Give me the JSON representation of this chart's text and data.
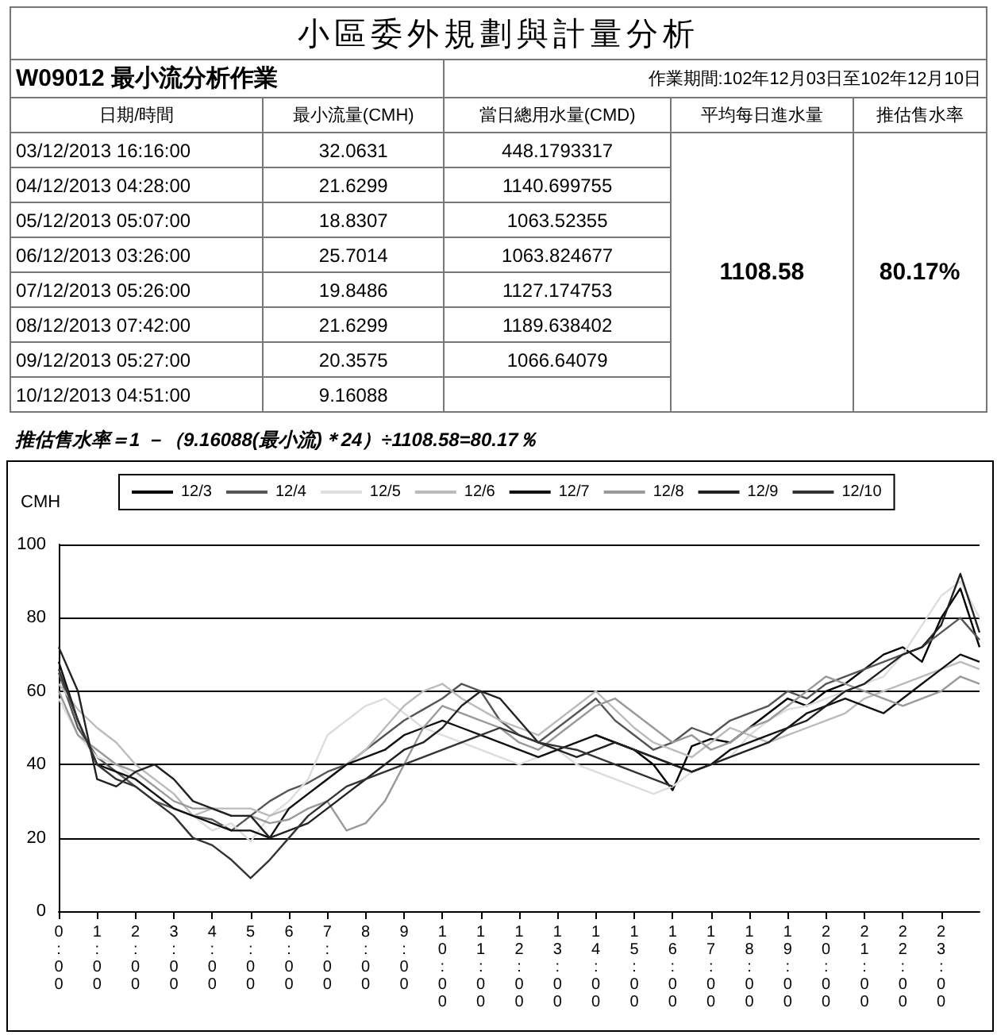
{
  "chart_data": [
    {
      "type": "other",
      "title": "小區委外規劃與計量分析",
      "subtitle": "W09012 最小流分析作業",
      "annotations": [
        "作業期間:102年12月03日至102年12月10日",
        "日期/時間",
        "最小流量(CMH)",
        "當日總用水量(CMD)",
        "平均每日進水量",
        "推估售水率",
        "03/12/2013 16:16:00",
        "32.0631",
        "448.1793317",
        "04/12/2013 04:28:00",
        "21.6299",
        "1140.699755",
        "05/12/2013 05:07:00",
        "18.8307",
        "1063.52355",
        "06/12/2013 03:26:00",
        "25.7014",
        "1063.824677",
        "07/12/2013 05:26:00",
        "19.8486",
        "1127.174753",
        "08/12/2013 07:42:00",
        "21.6299",
        "1189.638402",
        "09/12/2013 05:27:00",
        "20.3575",
        "1066.64079",
        "10/12/2013 04:51:00",
        "9.16088",
        "1108.58",
        "80.17%",
        "推估售水率＝1 －（9.16088(最小流)＊24）÷1108.58=80.17％"
      ]
    },
    {
      "type": "line",
      "ylabel": "CMH",
      "legend": "top",
      "grid": "y",
      "marker": "none",
      "line_style": "solid",
      "x": [
        0,
        0.5,
        1,
        1.5,
        2,
        2.5,
        3,
        3.5,
        4,
        4.5,
        5,
        5.5,
        6,
        6.5,
        7,
        7.5,
        8,
        8.5,
        9,
        9.5,
        10,
        10.5,
        11,
        11.5,
        12,
        12.5,
        13,
        13.5,
        14,
        14.5,
        15,
        15.5,
        16,
        16.5,
        17,
        17.5,
        18,
        18.5,
        19,
        19.5,
        20,
        20.5,
        21,
        21.5,
        22,
        22.5,
        23,
        23.5,
        24
      ],
      "xlim": [
        0,
        24
      ],
      "xticks": [
        {
          "value": 0,
          "label": "0:00"
        },
        {
          "value": 1,
          "label": "1:00"
        },
        {
          "value": 2,
          "label": "2:00"
        },
        {
          "value": 3,
          "label": "3:00"
        },
        {
          "value": 4,
          "label": "4:00"
        },
        {
          "value": 5,
          "label": "5:00"
        },
        {
          "value": 6,
          "label": "6:00"
        },
        {
          "value": 7,
          "label": "7:00"
        },
        {
          "value": 8,
          "label": "8:00"
        },
        {
          "value": 9,
          "label": "9:00"
        },
        {
          "value": 10,
          "label": "10:00"
        },
        {
          "value": 11,
          "label": "11:00"
        },
        {
          "value": 12,
          "label": "12:00"
        },
        {
          "value": 13,
          "label": "13:00"
        },
        {
          "value": 14,
          "label": "14:00"
        },
        {
          "value": 15,
          "label": "15:00"
        },
        {
          "value": 16,
          "label": "16:00"
        },
        {
          "value": 17,
          "label": "17:00"
        },
        {
          "value": 18,
          "label": "18:00"
        },
        {
          "value": 19,
          "label": "19:00"
        },
        {
          "value": 20,
          "label": "20:00"
        },
        {
          "value": 21,
          "label": "21:00"
        },
        {
          "value": 22,
          "label": "22:00"
        },
        {
          "value": 23,
          "label": "23:00"
        }
      ],
      "ylim": [
        0,
        100
      ],
      "yticks": [
        0,
        20,
        40,
        60,
        80,
        100
      ],
      "series": [
        {
          "name": "12/3",
          "color": "#000000",
          "values": [
            null,
            null,
            null,
            null,
            null,
            null,
            null,
            null,
            null,
            null,
            null,
            null,
            null,
            null,
            null,
            null,
            null,
            null,
            null,
            null,
            null,
            null,
            null,
            null,
            null,
            null,
            null,
            null,
            48,
            46,
            44,
            40,
            33,
            45,
            47,
            46,
            50,
            54,
            58,
            56,
            60,
            62,
            66,
            70,
            72,
            68,
            80,
            88,
            72
          ]
        },
        {
          "name": "12/4",
          "color": "#555555",
          "values": [
            65,
            50,
            42,
            38,
            34,
            30,
            28,
            26,
            25,
            22,
            26,
            30,
            33,
            35,
            38,
            40,
            44,
            48,
            52,
            55,
            58,
            62,
            60,
            52,
            48,
            46,
            50,
            54,
            58,
            52,
            48,
            44,
            46,
            50,
            48,
            52,
            54,
            56,
            60,
            58,
            62,
            64,
            66,
            68,
            70,
            72,
            76,
            80,
            74
          ]
        },
        {
          "name": "12/5",
          "color": "#dddddd",
          "values": [
            58,
            48,
            42,
            40,
            36,
            32,
            28,
            26,
            22,
            24,
            19,
            26,
            30,
            36,
            48,
            52,
            56,
            58,
            54,
            50,
            48,
            46,
            44,
            42,
            40,
            42,
            44,
            40,
            38,
            36,
            34,
            32,
            34,
            38,
            40,
            42,
            48,
            52,
            55,
            56,
            58,
            60,
            62,
            64,
            70,
            78,
            86,
            90,
            80
          ]
        },
        {
          "name": "12/6",
          "color": "#bbbbbb",
          "values": [
            62,
            55,
            50,
            46,
            40,
            36,
            32,
            26,
            28,
            28,
            28,
            26,
            28,
            32,
            36,
            40,
            44,
            50,
            56,
            60,
            62,
            58,
            55,
            52,
            50,
            48,
            52,
            56,
            60,
            55,
            50,
            46,
            44,
            42,
            46,
            50,
            48,
            46,
            48,
            50,
            52,
            54,
            58,
            60,
            62,
            64,
            66,
            68,
            66
          ]
        },
        {
          "name": "12/7",
          "color": "#111111",
          "values": [
            68,
            52,
            40,
            38,
            36,
            32,
            28,
            26,
            24,
            22,
            22,
            20,
            28,
            32,
            36,
            40,
            42,
            44,
            48,
            50,
            52,
            50,
            48,
            46,
            44,
            42,
            44,
            46,
            48,
            46,
            44,
            42,
            40,
            38,
            40,
            44,
            46,
            48,
            50,
            54,
            56,
            58,
            56,
            54,
            58,
            62,
            66,
            70,
            68
          ]
        },
        {
          "name": "12/8",
          "color": "#999999",
          "values": [
            60,
            48,
            44,
            40,
            38,
            34,
            30,
            28,
            28,
            26,
            26,
            24,
            25,
            28,
            30,
            22,
            24,
            30,
            40,
            50,
            56,
            54,
            52,
            50,
            46,
            44,
            48,
            52,
            56,
            58,
            54,
            50,
            46,
            48,
            44,
            46,
            50,
            52,
            56,
            60,
            64,
            62,
            60,
            58,
            56,
            58,
            60,
            64,
            62
          ]
        },
        {
          "name": "12/9",
          "color": "#222222",
          "values": [
            72,
            60,
            36,
            34,
            38,
            40,
            36,
            30,
            28,
            26,
            26,
            20,
            22,
            24,
            28,
            32,
            36,
            40,
            44,
            46,
            50,
            56,
            60,
            58,
            52,
            46,
            44,
            42,
            44,
            46,
            44,
            42,
            40,
            38,
            40,
            42,
            44,
            46,
            50,
            52,
            56,
            60,
            62,
            66,
            70,
            72,
            78,
            92,
            76
          ]
        },
        {
          "name": "12/10",
          "color": "#333333",
          "values": [
            66,
            52,
            40,
            36,
            34,
            30,
            26,
            20,
            18,
            14,
            9,
            14,
            20,
            26,
            30,
            34,
            36,
            38,
            40,
            42,
            44,
            46,
            48,
            50,
            48,
            46,
            45,
            44,
            42,
            40,
            38,
            36,
            34,
            null,
            null,
            null,
            null,
            null,
            null,
            null,
            null,
            null,
            null,
            null,
            null,
            null,
            null,
            null,
            null
          ]
        }
      ]
    }
  ]
}
